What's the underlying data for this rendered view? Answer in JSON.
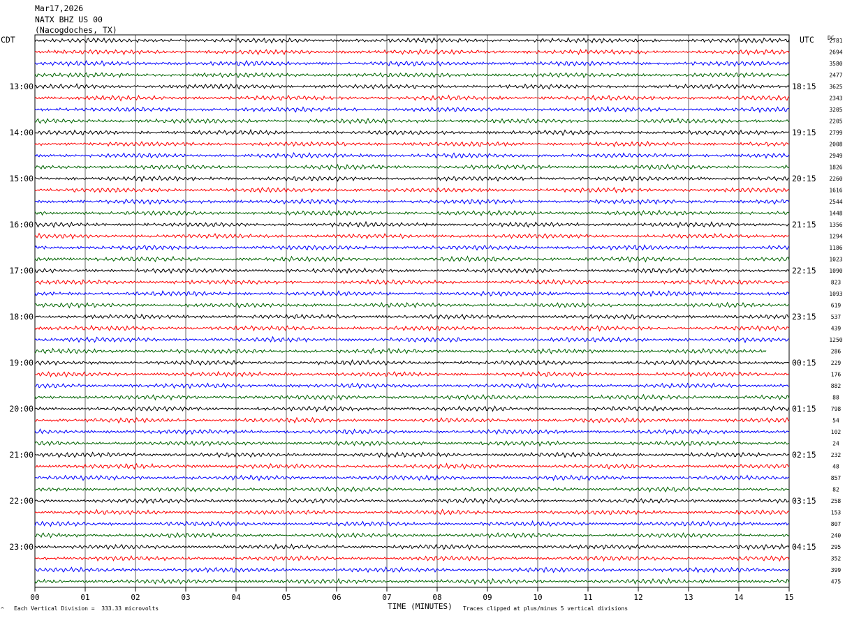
{
  "header": {
    "date": "Mar17,2026",
    "station": "NATX BHZ US 00",
    "location": "(Nacogdoches, TX)"
  },
  "left_timezone": "CDT",
  "right_timezone": "UTC",
  "dc_label": "DC",
  "footer": {
    "scale_note": "Each Vertical Division =  333.33 microvolts",
    "clip_note": "Traces clipped at plus/minus 5 vertical divisions",
    "corner_mark": "^"
  },
  "colors": [
    "#000000",
    "#ff0000",
    "#0000ff",
    "#006400"
  ],
  "chart_data": {
    "type": "helicorder",
    "xlabel": "TIME (MINUTES)",
    "x_ticks": [
      "00",
      "01",
      "02",
      "03",
      "04",
      "05",
      "06",
      "07",
      "08",
      "09",
      "10",
      "11",
      "12",
      "13",
      "14",
      "15"
    ],
    "x_range_minutes": [
      0,
      15
    ],
    "traces_per_hour": 4,
    "trace_count": 48,
    "left_hour_labels": [
      "13:00",
      "14:00",
      "15:00",
      "16:00",
      "17:00",
      "18:00",
      "19:00",
      "20:00",
      "21:00",
      "22:00",
      "23:00"
    ],
    "right_hour_labels": [
      "18:15",
      "19:15",
      "20:15",
      "21:15",
      "22:15",
      "23:15",
      "00:15",
      "01:15",
      "02:15",
      "03:15",
      "04:15"
    ],
    "dc_offsets": [
      "2781",
      "2694",
      "3580",
      "2477",
      "3625",
      "2343",
      "3205",
      "2205",
      "2799",
      "2008",
      "2949",
      "1826",
      "2260",
      "1616",
      "2544",
      "1448",
      "1356",
      "1294",
      "1186",
      "1023",
      "1090",
      "823",
      "1093",
      "619",
      "537",
      "439",
      "1250",
      "286",
      "229",
      "176",
      "882",
      "88",
      "798",
      "54",
      "102",
      "24",
      "232",
      "48",
      "857",
      "82",
      "258",
      "153",
      "807",
      "240",
      "295",
      "352",
      "399",
      "475"
    ],
    "grid": true
  }
}
